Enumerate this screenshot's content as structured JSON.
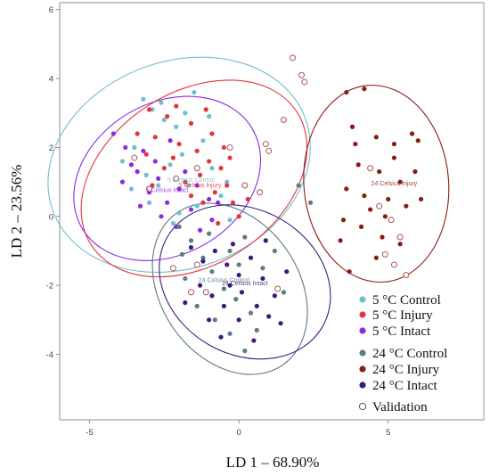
{
  "chart_data": {
    "type": "scatter",
    "xlabel": "LD 1 – 68.90%",
    "ylabel": "LD 2 – 23.56%",
    "xlim": [
      -6,
      8.2
    ],
    "ylim": [
      -5.9,
      6.2
    ],
    "xticks": [
      -5,
      0,
      5
    ],
    "yticks": [
      -4,
      -2,
      0,
      2,
      4,
      6
    ],
    "grid": false,
    "legend_position": "bottom-right",
    "colors": {
      "c5_control": "#6fbfce",
      "c5_injury": "#e8323c",
      "c5_intact": "#8a2be2",
      "c24_control": "#5a7c82",
      "c24_injury": "#8b1a12",
      "c24_intact": "#3b1a7e",
      "validation": "#b05050"
    },
    "legend": [
      {
        "label": "5 °C Control",
        "color": "#6fbfce",
        "open": false
      },
      {
        "label": "5 °C Injury",
        "color": "#e8323c",
        "open": false
      },
      {
        "label": "5 °C Intact",
        "color": "#8a2be2",
        "open": false
      },
      {
        "label": "24 °C Control",
        "color": "#5a7c82",
        "open": false
      },
      {
        "label": "24 °C Injury",
        "color": "#8b1a12",
        "open": false
      },
      {
        "label": "24 °C Intact",
        "color": "#3b1a7e",
        "open": false
      },
      {
        "label": "Validation",
        "color": "#b05050",
        "open": true
      }
    ],
    "centroid_labels": [
      {
        "text": "5 Celsius Control",
        "x": -1.6,
        "y": 1.0,
        "color": "#6fbfce"
      },
      {
        "text": "5 Celsius Injury",
        "x": -1.3,
        "y": 0.85,
        "color": "#e8323c"
      },
      {
        "text": "5 Celsius Intact",
        "x": -2.4,
        "y": 0.7,
        "color": "#8a2be2"
      },
      {
        "text": "24 Celsius Control",
        "x": -0.5,
        "y": -1.9,
        "color": "#5a7c82"
      },
      {
        "text": "24 Celsius Intact",
        "x": 0.2,
        "y": -2.0,
        "color": "#3b1a7e"
      },
      {
        "text": "24 Celsius Injury",
        "x": 5.2,
        "y": 0.9,
        "color": "#8b1a12"
      }
    ],
    "ellipses": [
      {
        "series": "c5_control",
        "cx": -2.0,
        "cy": 1.5,
        "rx": 4.5,
        "ry": 3.0,
        "angle": -20
      },
      {
        "series": "c5_injury",
        "cx": -1.5,
        "cy": 1.1,
        "rx": 4.1,
        "ry": 2.5,
        "angle": -33
      },
      {
        "series": "c5_intact",
        "cx": -2.4,
        "cy": 1.1,
        "rx": 3.3,
        "ry": 2.2,
        "angle": -30
      },
      {
        "series": "c24_control",
        "cx": -0.3,
        "cy": -2.1,
        "rx": 3.1,
        "ry": 2.0,
        "angle": 55
      },
      {
        "series": "c24_intact",
        "cx": 0.2,
        "cy": -1.9,
        "rx": 3.0,
        "ry": 2.1,
        "angle": 30
      },
      {
        "series": "c24_injury",
        "cx": 4.6,
        "cy": 0.95,
        "rx": 3.3,
        "ry": 2.1,
        "angle": 85
      }
    ],
    "series": [
      {
        "key": "c5_control",
        "points": [
          [
            -3.2,
            3.4
          ],
          [
            -2.9,
            3.1
          ],
          [
            -2.5,
            2.8
          ],
          [
            -1.8,
            3.0
          ],
          [
            -1.5,
            3.6
          ],
          [
            -2.1,
            2.6
          ],
          [
            -3.5,
            2.0
          ],
          [
            -3.9,
            1.6
          ],
          [
            -3.1,
            1.2
          ],
          [
            -2.7,
            0.9
          ],
          [
            -2.3,
            1.5
          ],
          [
            -1.9,
            1.8
          ],
          [
            -1.2,
            2.2
          ],
          [
            -0.9,
            1.4
          ],
          [
            -0.6,
            0.6
          ],
          [
            -0.3,
            -0.1
          ],
          [
            -1.4,
            0.3
          ],
          [
            -2.0,
            0.1
          ],
          [
            -3.0,
            0.4
          ],
          [
            -3.6,
            0.8
          ],
          [
            -1.0,
            2.9
          ],
          [
            -2.6,
            3.3
          ],
          [
            -2.2,
            -0.2
          ],
          [
            -0.4,
            1.0
          ],
          [
            -1.7,
            0.9
          ]
        ]
      },
      {
        "key": "c5_injury",
        "points": [
          [
            -3.0,
            3.1
          ],
          [
            -2.4,
            2.9
          ],
          [
            -2.1,
            3.2
          ],
          [
            -1.6,
            2.7
          ],
          [
            -2.8,
            2.3
          ],
          [
            -2.0,
            2.1
          ],
          [
            -1.4,
            1.9
          ],
          [
            -1.0,
            1.6
          ],
          [
            -0.6,
            1.4
          ],
          [
            -0.4,
            0.9
          ],
          [
            -0.2,
            0.4
          ],
          [
            0.0,
            0.0
          ],
          [
            -0.8,
            0.7
          ],
          [
            -1.3,
            1.2
          ],
          [
            -1.8,
            1.0
          ],
          [
            -2.5,
            1.4
          ],
          [
            -3.1,
            1.8
          ],
          [
            -3.4,
            2.4
          ],
          [
            -0.9,
            2.4
          ],
          [
            -0.5,
            2.0
          ],
          [
            -1.2,
            0.4
          ],
          [
            -0.7,
            -0.2
          ],
          [
            -2.2,
            1.7
          ],
          [
            -1.6,
            0.6
          ],
          [
            0.3,
            0.5
          ],
          [
            -2.9,
            0.9
          ],
          [
            -1.1,
            3.1
          ],
          [
            -0.3,
            1.7
          ]
        ]
      },
      {
        "key": "c5_intact",
        "points": [
          [
            -4.2,
            2.4
          ],
          [
            -3.8,
            2.0
          ],
          [
            -3.4,
            1.3
          ],
          [
            -3.0,
            0.7
          ],
          [
            -2.7,
            1.1
          ],
          [
            -2.4,
            0.4
          ],
          [
            -2.0,
            0.8
          ],
          [
            -1.6,
            0.2
          ],
          [
            -1.3,
            -0.4
          ],
          [
            -1.0,
            0.5
          ],
          [
            -3.6,
            1.5
          ],
          [
            -3.2,
            1.9
          ],
          [
            -2.8,
            1.6
          ],
          [
            -2.3,
            2.2
          ],
          [
            -1.8,
            1.3
          ],
          [
            -0.9,
            -0.1
          ],
          [
            -2.6,
            0.0
          ],
          [
            -3.9,
            1.0
          ],
          [
            -1.4,
            0.9
          ],
          [
            -2.1,
            -0.3
          ],
          [
            -3.3,
            0.3
          ],
          [
            -0.7,
            0.4
          ]
        ]
      },
      {
        "key": "c24_control",
        "points": [
          [
            -2.0,
            -0.3
          ],
          [
            -1.6,
            -0.7
          ],
          [
            -1.2,
            -1.2
          ],
          [
            -0.9,
            -1.6
          ],
          [
            -0.5,
            -2.1
          ],
          [
            -0.1,
            -2.4
          ],
          [
            0.4,
            -2.8
          ],
          [
            0.8,
            -1.5
          ],
          [
            1.2,
            -1.0
          ],
          [
            0.2,
            -0.6
          ],
          [
            -0.3,
            -1.0
          ],
          [
            -1.8,
            -1.8
          ],
          [
            -1.4,
            -2.6
          ],
          [
            -0.8,
            -3.0
          ],
          [
            -0.3,
            -3.4
          ],
          [
            0.2,
            -3.9
          ],
          [
            -1.0,
            -0.5
          ],
          [
            1.5,
            -2.2
          ],
          [
            0.6,
            -3.3
          ],
          [
            -1.9,
            -1.1
          ],
          [
            2.0,
            0.9
          ],
          [
            2.4,
            0.4
          ],
          [
            0.0,
            -1.4
          ]
        ]
      },
      {
        "key": "c24_injury",
        "points": [
          [
            3.6,
            3.6
          ],
          [
            4.2,
            3.7
          ],
          [
            3.8,
            2.6
          ],
          [
            4.6,
            2.3
          ],
          [
            5.2,
            2.1
          ],
          [
            5.8,
            2.4
          ],
          [
            6.0,
            2.2
          ],
          [
            4.0,
            1.5
          ],
          [
            4.7,
            1.3
          ],
          [
            5.4,
            1.0
          ],
          [
            3.6,
            0.8
          ],
          [
            4.2,
            0.6
          ],
          [
            5.0,
            0.5
          ],
          [
            5.6,
            0.3
          ],
          [
            6.1,
            0.5
          ],
          [
            3.5,
            -0.1
          ],
          [
            4.1,
            -0.3
          ],
          [
            4.8,
            -0.6
          ],
          [
            5.4,
            -0.8
          ],
          [
            4.6,
            -1.2
          ],
          [
            3.4,
            -0.7
          ],
          [
            4.4,
            0.2
          ],
          [
            5.2,
            1.7
          ],
          [
            3.9,
            2.1
          ],
          [
            5.9,
            1.3
          ],
          [
            4.9,
            0.0
          ],
          [
            3.7,
            -1.6
          ]
        ]
      },
      {
        "key": "c24_intact",
        "points": [
          [
            -1.6,
            -0.9
          ],
          [
            -1.2,
            -1.3
          ],
          [
            -0.8,
            -1.0
          ],
          [
            -0.4,
            -1.4
          ],
          [
            0.0,
            -1.7
          ],
          [
            0.4,
            -1.2
          ],
          [
            0.8,
            -1.8
          ],
          [
            1.2,
            -2.3
          ],
          [
            1.6,
            -1.6
          ],
          [
            -1.3,
            -2.0
          ],
          [
            -0.9,
            -2.3
          ],
          [
            -0.5,
            -2.6
          ],
          [
            0.1,
            -2.2
          ],
          [
            0.6,
            -2.6
          ],
          [
            1.0,
            -2.9
          ],
          [
            -1.0,
            -3.0
          ],
          [
            -0.6,
            -3.5
          ],
          [
            0.0,
            -3.0
          ],
          [
            0.5,
            -3.6
          ],
          [
            -1.8,
            -2.5
          ],
          [
            -0.2,
            -0.8
          ],
          [
            0.9,
            -0.7
          ],
          [
            -0.3,
            -2.0
          ],
          [
            1.4,
            -3.1
          ]
        ]
      },
      {
        "key": "validation",
        "open": true,
        "points": [
          [
            1.8,
            4.6
          ],
          [
            2.1,
            4.1
          ],
          [
            2.2,
            3.9
          ],
          [
            1.5,
            2.8
          ],
          [
            0.9,
            2.1
          ],
          [
            1.0,
            1.9
          ],
          [
            0.7,
            0.7
          ],
          [
            -0.3,
            2.0
          ],
          [
            -1.4,
            1.4
          ],
          [
            -2.1,
            1.1
          ],
          [
            -3.0,
            0.8
          ],
          [
            -3.5,
            1.7
          ],
          [
            -2.2,
            -1.5
          ],
          [
            -1.6,
            -2.2
          ],
          [
            -1.1,
            -2.2
          ],
          [
            1.3,
            -2.1
          ],
          [
            4.4,
            1.4
          ],
          [
            4.7,
            0.3
          ],
          [
            5.1,
            -0.1
          ],
          [
            5.4,
            -0.6
          ],
          [
            4.9,
            -1.1
          ],
          [
            5.6,
            -1.7
          ],
          [
            5.2,
            -1.4
          ],
          [
            -1.4,
            -1.4
          ],
          [
            0.2,
            0.9
          ]
        ]
      }
    ]
  }
}
